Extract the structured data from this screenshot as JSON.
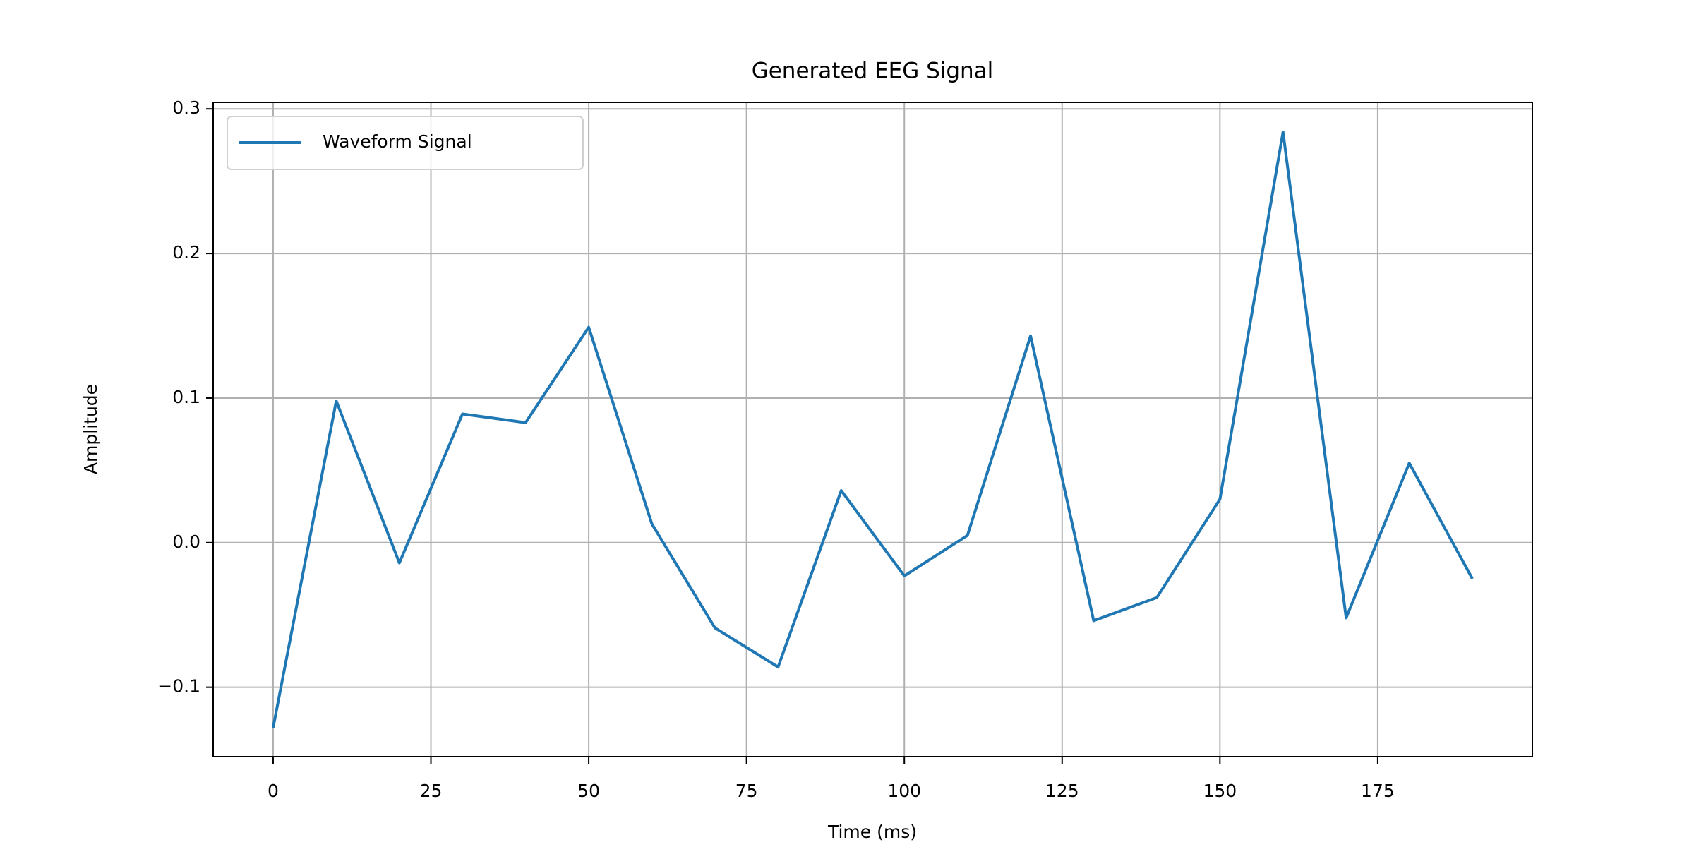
{
  "chart_data": {
    "type": "line",
    "title": "Generated EEG Signal",
    "x_label": "Time (ms)",
    "y_label": "Amplitude",
    "x": [
      0,
      10,
      20,
      30,
      40,
      50,
      60,
      70,
      80,
      90,
      100,
      110,
      120,
      130,
      140,
      150,
      160,
      170,
      180,
      190
    ],
    "series": [
      {
        "name": "Waveform Signal",
        "color": "#1f77b4",
        "values": [
          -0.128,
          0.098,
          -0.014,
          0.089,
          0.083,
          0.149,
          0.013,
          -0.059,
          -0.086,
          0.036,
          -0.023,
          0.005,
          0.143,
          -0.054,
          -0.038,
          0.03,
          0.284,
          -0.052,
          0.055,
          -0.025
        ]
      }
    ],
    "xlim": [
      -9.5,
      199.5
    ],
    "xticks": [
      0,
      25,
      50,
      75,
      100,
      125,
      150,
      175
    ],
    "ylim": [
      -0.148,
      0.3045
    ],
    "yticks": [
      {
        "value": -0.1,
        "label": "−0.1"
      },
      {
        "value": 0,
        "label": "0.0"
      },
      0.1,
      0.2,
      0.3
    ],
    "grid": true,
    "legend": "upper left"
  }
}
